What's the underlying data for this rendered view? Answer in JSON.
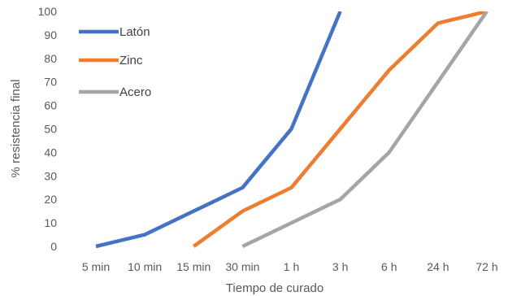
{
  "chart_data": {
    "type": "line",
    "title": "",
    "xlabel": "Tiempo de curado",
    "ylabel": "% resistencia final",
    "categories": [
      "5 min",
      "10 min",
      "15 min",
      "30 min",
      "1 h",
      "3 h",
      "6 h",
      "24 h",
      "72 h"
    ],
    "ylim": [
      0,
      100
    ],
    "yticks": [
      0,
      10,
      20,
      30,
      40,
      50,
      60,
      70,
      80,
      90,
      100
    ],
    "grid": false,
    "legend_position": "top-left",
    "series": [
      {
        "name": "Latón",
        "color": "#4472C4",
        "values": [
          0,
          5,
          15,
          25,
          50,
          100,
          null,
          null,
          null
        ]
      },
      {
        "name": "Zinc",
        "color": "#ED7D31",
        "values": [
          null,
          null,
          0,
          15,
          25,
          50,
          75,
          95,
          100
        ]
      },
      {
        "name": "Acero",
        "color": "#A5A5A5",
        "values": [
          null,
          null,
          null,
          0,
          10,
          20,
          40,
          70,
          100
        ]
      }
    ]
  }
}
